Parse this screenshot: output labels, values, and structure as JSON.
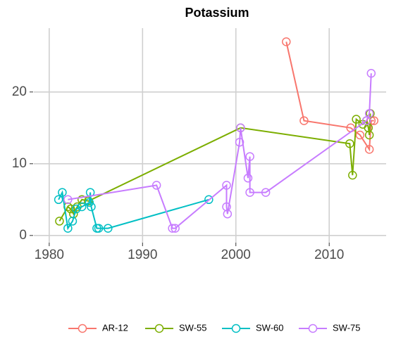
{
  "chart_data": {
    "type": "line",
    "title": "Potassium",
    "xlim": [
      1978.35,
      2016.1
    ],
    "xticks": [
      1980,
      1990,
      2000,
      2010
    ],
    "ylim": [
      -1,
      28.9
    ],
    "yticks": [
      0,
      10,
      20
    ],
    "grid": true,
    "legend": "bottom",
    "series": [
      {
        "name": "AR-12",
        "color": "#F8766D",
        "x": [
          2005.4,
          2007.3,
          2012.3,
          2013.3,
          2014.3,
          2014.5,
          2014.8
        ],
        "values": [
          27,
          16,
          15,
          14,
          12,
          16,
          16
        ]
      },
      {
        "name": "SW-55",
        "color": "#7CAE00",
        "x": [
          1981.1,
          1982.0,
          1982.3,
          1982.6,
          1983.0,
          1983.5,
          1984.2,
          2000.5,
          2012.2,
          2012.5,
          2012.9,
          2013.6,
          2014.0,
          2014.2,
          2014.3,
          2014.4
        ],
        "values": [
          2,
          4,
          3.7,
          3,
          4,
          5,
          4.8,
          15,
          12.8,
          8.4,
          16.2,
          15.5,
          16,
          15,
          14,
          17
        ]
      },
      {
        "name": "SW-60",
        "color": "#00BFC4",
        "x": [
          1981.0,
          1981.4,
          1982.0,
          1982.5,
          1982.9,
          1983.5,
          1984.3,
          1984.4,
          1984.5,
          1985.1,
          1985.3,
          1986.3,
          1997.1
        ],
        "values": [
          5,
          6,
          1,
          2,
          3.7,
          4,
          4.6,
          6,
          4,
          1,
          1,
          1,
          5
        ]
      },
      {
        "name": "SW-75",
        "color": "#C77CFF",
        "x": [
          1982.0,
          1991.5,
          1993.2,
          1993.5,
          1999.0,
          1999.0,
          1999.1,
          2000.4,
          2000.5,
          2001.3,
          2001.5,
          2001.5,
          2003.2,
          2014.0,
          2014.3,
          2014.5
        ],
        "values": [
          5,
          7,
          1,
          1,
          7,
          4,
          3,
          13,
          15,
          8,
          11,
          6,
          6,
          16,
          17,
          22.6
        ]
      }
    ]
  }
}
